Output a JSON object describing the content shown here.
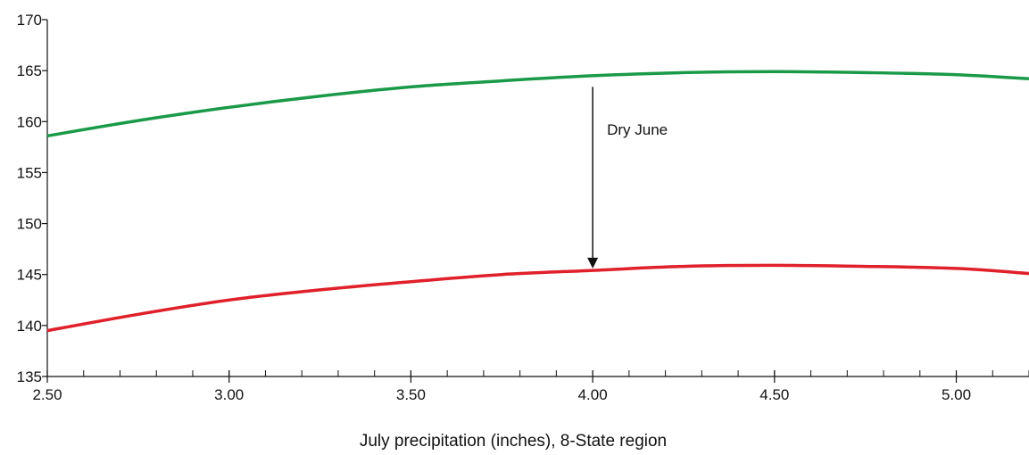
{
  "chart_data": {
    "type": "line",
    "title": "",
    "xlabel": "July precipitation (inches), 8-State region",
    "ylabel": "",
    "xlim": [
      2.5,
      5.2
    ],
    "ylim": [
      135,
      170
    ],
    "x_ticks": [
      2.5,
      3.0,
      3.5,
      4.0,
      4.5,
      5.0
    ],
    "x_tick_labels": [
      "2.50",
      "3.00",
      "3.50",
      "4.00",
      "4.50",
      "5.00"
    ],
    "x_minor_step": 0.1,
    "y_ticks": [
      135,
      140,
      145,
      150,
      155,
      160,
      165,
      170
    ],
    "y_tick_labels": [
      "135",
      "140",
      "145",
      "150",
      "155",
      "160",
      "165",
      "170"
    ],
    "grid": false,
    "legend": "none",
    "series": [
      {
        "color": "#1a9a48",
        "x": [
          2.5,
          2.75,
          3.0,
          3.25,
          3.5,
          3.75,
          4.0,
          4.25,
          4.5,
          4.75,
          5.0,
          5.2
        ],
        "y": [
          158.6,
          160.1,
          161.4,
          162.5,
          163.4,
          164.0,
          164.5,
          164.8,
          164.9,
          164.8,
          164.6,
          164.2
        ]
      },
      {
        "color": "#e0202a",
        "x": [
          2.5,
          2.75,
          3.0,
          3.25,
          3.5,
          3.75,
          4.0,
          4.25,
          4.5,
          4.75,
          5.0,
          5.2
        ],
        "y": [
          139.5,
          141.1,
          142.5,
          143.5,
          144.3,
          145.0,
          145.4,
          145.8,
          145.9,
          145.8,
          145.6,
          145.1
        ]
      }
    ],
    "annotations": [
      {
        "text": "Dry June",
        "arrow_x": 4.0,
        "arrow_from_y": 163.4,
        "arrow_to_y": 145.6
      }
    ]
  }
}
